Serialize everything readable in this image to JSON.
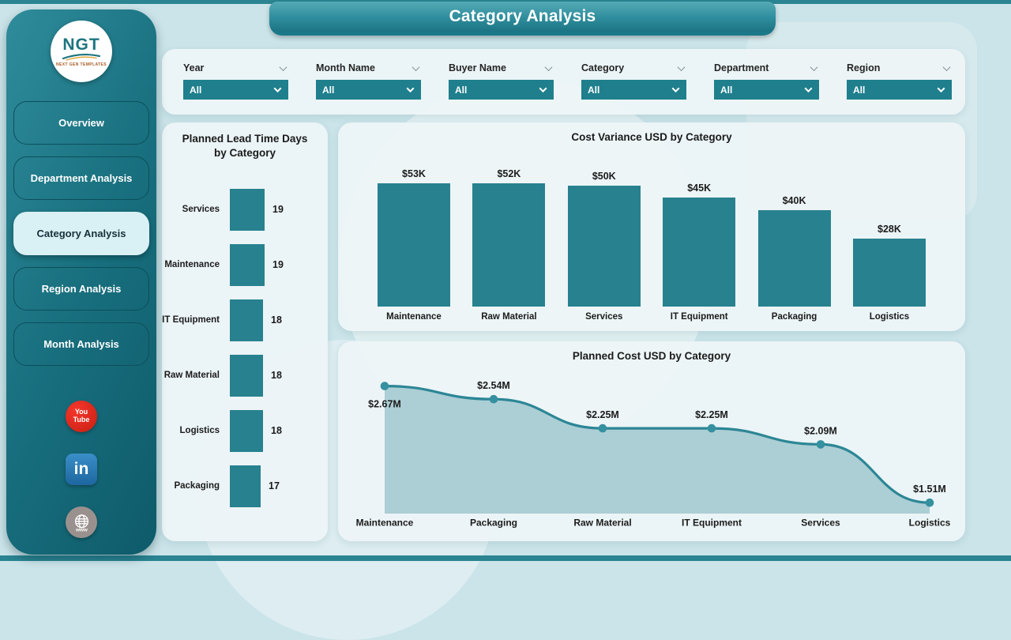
{
  "colors": {
    "accent": "#27818F",
    "line": "#2C8695",
    "point": "#35909F",
    "area_fill": "#A9CBD3",
    "page_bg": "#CAE4E9",
    "card_bg": "#EDF4F6",
    "sidebar_dark": "#0E5B6A",
    "active_nav_bg": "#D9F0F4",
    "youtube_red": "#E3291D",
    "linkedin_blue": "#2577B5"
  },
  "header": {
    "title": "Category Analysis"
  },
  "sidebar": {
    "logo": {
      "text": "NGT",
      "subtext": "NEXT GEN TEMPLATES"
    },
    "items": [
      {
        "label": "Overview",
        "active": false
      },
      {
        "label": "Department Analysis",
        "active": false
      },
      {
        "label": "Category Analysis",
        "active": true
      },
      {
        "label": "Region Analysis",
        "active": false
      },
      {
        "label": "Month Analysis",
        "active": false
      }
    ],
    "social": [
      {
        "name": "youtube",
        "lines": [
          "You",
          "Tube"
        ]
      },
      {
        "name": "linkedin",
        "label": "in"
      },
      {
        "name": "website",
        "label": "www"
      }
    ]
  },
  "filters": [
    {
      "label": "Year",
      "value": "All"
    },
    {
      "label": "Month Name",
      "value": "All"
    },
    {
      "label": "Buyer Name",
      "value": "All"
    },
    {
      "label": "Category",
      "value": "All"
    },
    {
      "label": "Department",
      "value": "All"
    },
    {
      "label": "Region",
      "value": "All"
    }
  ],
  "chart_data": [
    {
      "type": "bar",
      "orientation": "horizontal",
      "title": "Planned Lead Time Days by Category",
      "categories": [
        "Services",
        "Maintenance",
        "IT Equipment",
        "Raw Material",
        "Logistics",
        "Packaging"
      ],
      "values": [
        19,
        19,
        18,
        18,
        18,
        17
      ],
      "value_labels": [
        "19",
        "19",
        "18",
        "18",
        "18",
        "17"
      ],
      "xlabel": "",
      "ylabel": "",
      "value_axis_range": [
        0,
        19
      ],
      "grid": false,
      "legend": false
    },
    {
      "type": "bar",
      "orientation": "vertical",
      "title": "Cost Variance USD by Category",
      "categories": [
        "Maintenance",
        "Raw Material",
        "Services",
        "IT Equipment",
        "Packaging",
        "Logistics"
      ],
      "values": [
        53000,
        52000,
        50000,
        45000,
        40000,
        28000
      ],
      "value_labels": [
        "$53K",
        "$52K",
        "$50K",
        "$45K",
        "$40K",
        "$28K"
      ],
      "xlabel": "",
      "ylabel": "",
      "value_axis_range": [
        0,
        53000
      ],
      "grid": false,
      "legend": false
    },
    {
      "type": "area",
      "title": "Planned Cost USD by Category",
      "categories": [
        "Maintenance",
        "Packaging",
        "Raw Material",
        "IT Equipment",
        "Services",
        "Logistics"
      ],
      "values": [
        2670000,
        2540000,
        2250000,
        2250000,
        2090000,
        1510000
      ],
      "value_labels": [
        "$2.67M",
        "$2.54M",
        "$2.25M",
        "$2.25M",
        "$2.09M",
        "$1.51M"
      ],
      "xlabel": "",
      "ylabel": "",
      "grid": false,
      "legend": false
    }
  ]
}
